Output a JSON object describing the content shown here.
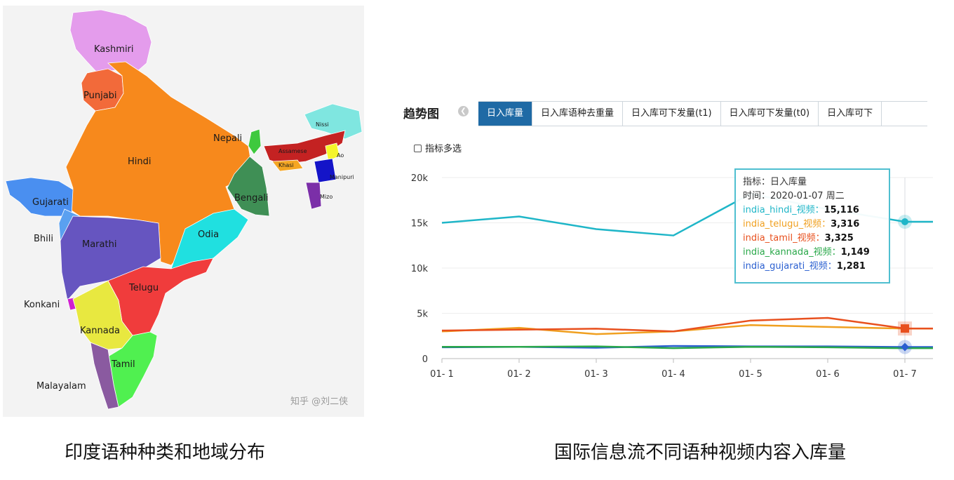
{
  "map": {
    "regions": [
      {
        "id": "kashmiri",
        "label": "Kashmiri",
        "color": "#e49cec"
      },
      {
        "id": "punjabi",
        "label": "Punjabi",
        "color": "#f26a3a"
      },
      {
        "id": "hindi",
        "label": "Hindi",
        "color": "#f7891c"
      },
      {
        "id": "nepali",
        "label": "Nepali",
        "color": "#3ec93e"
      },
      {
        "id": "nissi",
        "label": "Nissi",
        "color": "#7fe6e0"
      },
      {
        "id": "assamese",
        "label": "Assamese",
        "color": "#c42222"
      },
      {
        "id": "khasi",
        "label": "Khasi",
        "color": "#f5a623"
      },
      {
        "id": "ao",
        "label": "Ao",
        "color": "#f5f52b"
      },
      {
        "id": "manipuri",
        "label": "Manipuri",
        "color": "#1414c8"
      },
      {
        "id": "mizo",
        "label": "Mizo",
        "color": "#7b2fa8"
      },
      {
        "id": "bengali",
        "label": "Bengali",
        "color": "#3f8f55"
      },
      {
        "id": "gujarati",
        "label": "Gujarati",
        "color": "#4a8ff0"
      },
      {
        "id": "bhili",
        "label": "Bhili",
        "color": "#5aa0f0"
      },
      {
        "id": "marathi",
        "label": "Marathi",
        "color": "#6655c0"
      },
      {
        "id": "odia",
        "label": "Odia",
        "color": "#20e0e0"
      },
      {
        "id": "telugu",
        "label": "Telugu",
        "color": "#f03c3c"
      },
      {
        "id": "konkani",
        "label": "Konkani",
        "color": "#d020d0"
      },
      {
        "id": "kannada",
        "label": "Kannada",
        "color": "#e8e840"
      },
      {
        "id": "tamil",
        "label": "Tamil",
        "color": "#50f050"
      },
      {
        "id": "malayalam",
        "label": "Malayalam",
        "color": "#8a5aa0"
      }
    ],
    "watermark": "知乎 @刘二侠"
  },
  "captions": {
    "left": "印度语种种类和地域分布",
    "right": "国际信息流不同语种视频内容入库量"
  },
  "chart_panel": {
    "title": "趋势图",
    "tabs": [
      "日入库量",
      "日入库语种去重量",
      "日入库可下发量(t1)",
      "日入库可下发量(t0)",
      "日入库可下"
    ],
    "active_tab": 0,
    "multi_select_label": "指标多选"
  },
  "tooltip": {
    "metric_label": "指标：",
    "metric_value": "日入库量",
    "time_label": "时间：",
    "time_value": "2020-01-07 周二",
    "rows": [
      {
        "name": "india_hindi_视频：",
        "value": "15,116"
      },
      {
        "name": "india_telugu_视频：",
        "value": "3,316"
      },
      {
        "name": "india_tamil_视频：",
        "value": "3,325"
      },
      {
        "name": "india_kannada_视频：",
        "value": "1,149"
      },
      {
        "name": "india_gujarati_视频：",
        "value": "1,281"
      }
    ]
  },
  "chart_data": {
    "type": "line",
    "x": [
      "01- 1",
      "01- 2",
      "01- 3",
      "01- 4",
      "01- 5",
      "01- 6",
      "01- 7"
    ],
    "ylim": [
      0,
      20000
    ],
    "yticks": [
      "0",
      "5k",
      "10k",
      "15k",
      "20k"
    ],
    "grid": true,
    "series": [
      {
        "name": "india_hindi_视频",
        "color": "#1fb6c8",
        "values": [
          15000,
          15700,
          14300,
          13600,
          18200,
          16500,
          15116
        ]
      },
      {
        "name": "india_telugu_视频",
        "color": "#f0a020",
        "values": [
          3000,
          3400,
          2700,
          3000,
          3700,
          3500,
          3316
        ]
      },
      {
        "name": "india_tamil_视频",
        "color": "#e8501e",
        "values": [
          3100,
          3200,
          3300,
          3000,
          4200,
          4500,
          3325
        ]
      },
      {
        "name": "india_kannada_视频",
        "color": "#2aa84a",
        "values": [
          1300,
          1300,
          1350,
          1150,
          1300,
          1250,
          1149
        ]
      },
      {
        "name": "india_gujarati_视频",
        "color": "#2a5fd0",
        "values": [
          1250,
          1300,
          1200,
          1400,
          1350,
          1350,
          1281
        ]
      }
    ]
  }
}
